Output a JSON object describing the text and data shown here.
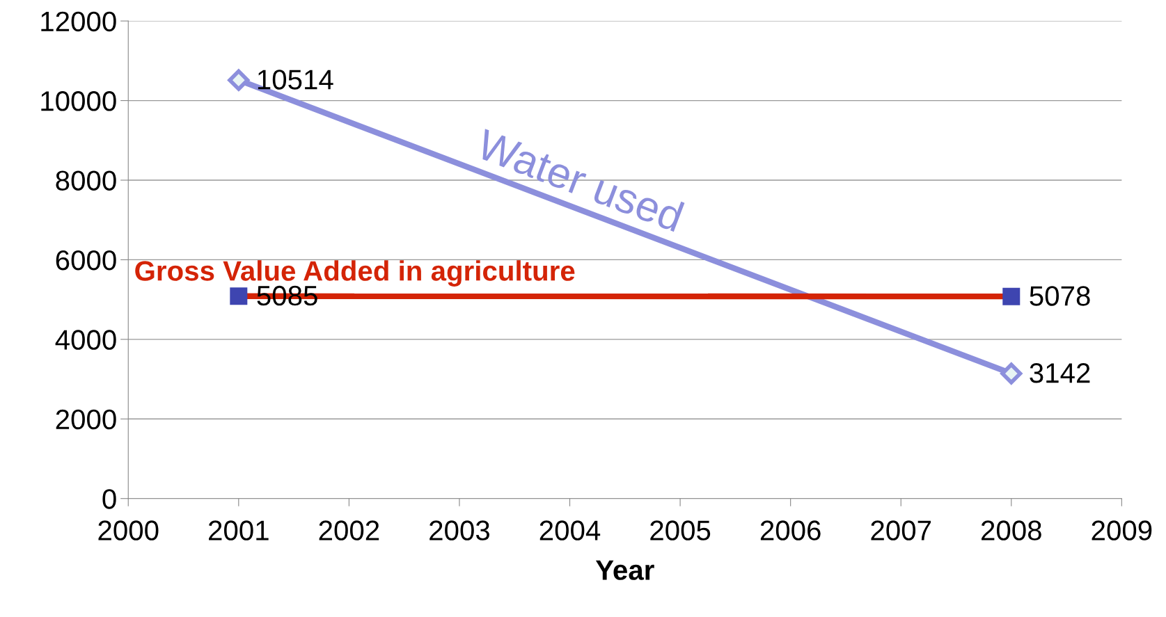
{
  "chart_data": {
    "type": "line",
    "xlabel": "Year",
    "xlim": [
      2000,
      2009
    ],
    "xticks": [
      2000,
      2001,
      2002,
      2003,
      2004,
      2005,
      2006,
      2007,
      2008,
      2009
    ],
    "ylim": [
      0,
      12000
    ],
    "yticks": [
      0,
      2000,
      4000,
      6000,
      8000,
      10000,
      12000
    ],
    "grid": "y",
    "legend": false,
    "data_labels": true,
    "x": [
      2001,
      2008
    ],
    "series": [
      {
        "name": "Water used",
        "color": "#8c8fdc",
        "marker": "diamond",
        "values": [
          10514,
          3142
        ]
      },
      {
        "name": "Gross Value Added in agriculture",
        "color": "#d42406",
        "colors": [
          "#3e45b0",
          "#3e45b0"
        ],
        "marker": "square",
        "values": [
          5085,
          5078
        ]
      }
    ]
  }
}
